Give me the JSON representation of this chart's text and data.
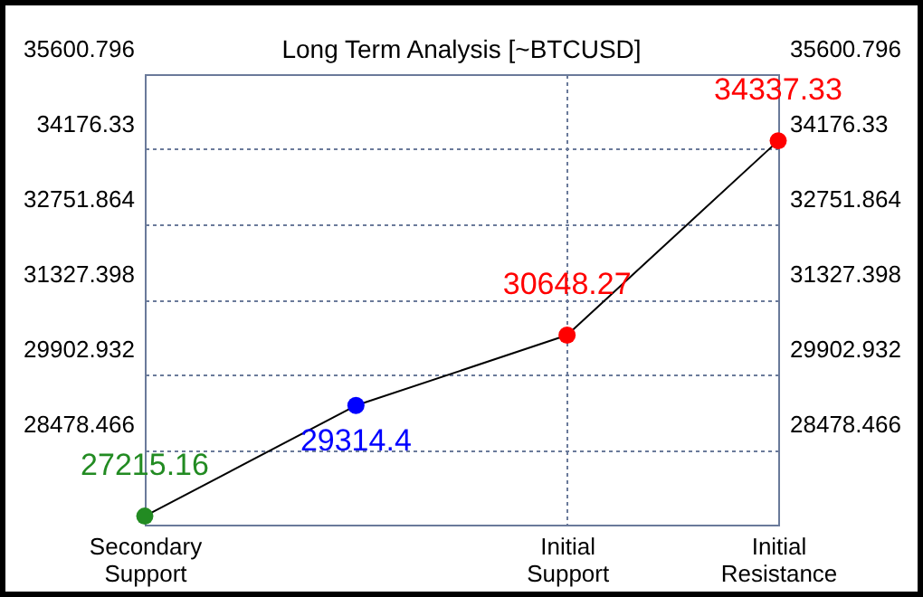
{
  "chart_data": {
    "type": "line",
    "title": "Long Term Analysis [~BTCUSD]",
    "categories": [
      "Secondary Support",
      null,
      "Initial Support",
      "Initial Resistance"
    ],
    "series": [
      {
        "color": "#000000",
        "colors": [
          "#228b22",
          "#0000ff",
          "#ff0000",
          "#ff0000"
        ],
        "values": [
          27215.16,
          29314.4,
          30648.27,
          34337.33
        ]
      }
    ],
    "ylim": [
      27054,
      35600.796
    ],
    "yticks": [
      {
        "value": 27054,
        "label": null
      },
      28478.466,
      29902.932,
      31327.398,
      32751.864,
      34176.33,
      35600.796
    ],
    "y2lim": [
      27054,
      35600.796
    ],
    "y2ticks": [
      28478.466,
      29902.932,
      31327.398,
      32751.864,
      34176.33,
      35600.796
    ],
    "grid": true,
    "marker": "circle",
    "line_style": "solid",
    "data_labels": true
  }
}
